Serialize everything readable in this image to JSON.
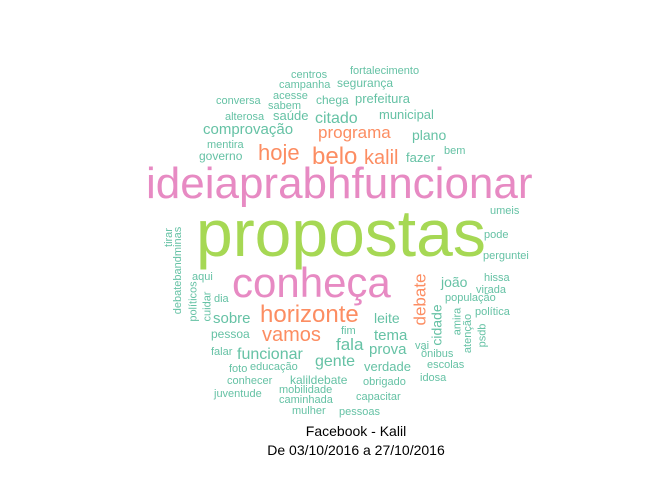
{
  "colors": {
    "pink": "#e78ac3",
    "green": "#a6d854",
    "orange": "#fc8d62",
    "teal": "#66c2a5"
  },
  "caption": {
    "line1": "Facebook - Kalil",
    "line2": "De 03/10/2016 a 27/10/2016"
  },
  "words": [
    {
      "text": "propostas",
      "color": "green"
    },
    {
      "text": "ideiaprabhfuncionar",
      "color": "pink"
    },
    {
      "text": "conheça",
      "color": "pink"
    },
    {
      "text": "horizonte",
      "color": "orange"
    },
    {
      "text": "belo",
      "color": "orange"
    },
    {
      "text": "kalil",
      "color": "orange"
    },
    {
      "text": "hoje",
      "color": "orange"
    },
    {
      "text": "vamos",
      "color": "orange"
    },
    {
      "text": "programa",
      "color": "orange"
    },
    {
      "text": "debate",
      "color": "orange"
    },
    {
      "text": "fortalecimento",
      "color": "teal"
    },
    {
      "text": "centros",
      "color": "teal"
    },
    {
      "text": "campanha",
      "color": "teal"
    },
    {
      "text": "segurança",
      "color": "teal"
    },
    {
      "text": "acesse",
      "color": "teal"
    },
    {
      "text": "conversa",
      "color": "teal"
    },
    {
      "text": "sabem",
      "color": "teal"
    },
    {
      "text": "chega",
      "color": "teal"
    },
    {
      "text": "prefeitura",
      "color": "teal"
    },
    {
      "text": "alterosa",
      "color": "teal"
    },
    {
      "text": "saúde",
      "color": "teal"
    },
    {
      "text": "citado",
      "color": "teal"
    },
    {
      "text": "municipal",
      "color": "teal"
    },
    {
      "text": "comprovação",
      "color": "teal"
    },
    {
      "text": "plano",
      "color": "teal"
    },
    {
      "text": "mentira",
      "color": "teal"
    },
    {
      "text": "governo",
      "color": "teal"
    },
    {
      "text": "bem",
      "color": "teal"
    },
    {
      "text": "fazer",
      "color": "teal"
    },
    {
      "text": "umeis",
      "color": "teal"
    },
    {
      "text": "tirar",
      "color": "teal"
    },
    {
      "text": "debatebandminas",
      "color": "teal"
    },
    {
      "text": "pode",
      "color": "teal"
    },
    {
      "text": "perguntei",
      "color": "teal"
    },
    {
      "text": "aqui",
      "color": "teal"
    },
    {
      "text": "joão",
      "color": "teal"
    },
    {
      "text": "hissa",
      "color": "teal"
    },
    {
      "text": "virada",
      "color": "teal"
    },
    {
      "text": "políticos",
      "color": "teal"
    },
    {
      "text": "cuidar",
      "color": "teal"
    },
    {
      "text": "dia",
      "color": "teal"
    },
    {
      "text": "sobre",
      "color": "teal"
    },
    {
      "text": "leite",
      "color": "teal"
    },
    {
      "text": "cidade",
      "color": "teal"
    },
    {
      "text": "população",
      "color": "teal"
    },
    {
      "text": "política",
      "color": "teal"
    },
    {
      "text": "amira",
      "color": "teal"
    },
    {
      "text": "atenção",
      "color": "teal"
    },
    {
      "text": "psdb",
      "color": "teal"
    },
    {
      "text": "pessoa",
      "color": "teal"
    },
    {
      "text": "fim",
      "color": "teal"
    },
    {
      "text": "tema",
      "color": "teal"
    },
    {
      "text": "fala",
      "color": "teal"
    },
    {
      "text": "vai",
      "color": "teal"
    },
    {
      "text": "prova",
      "color": "teal"
    },
    {
      "text": "falar",
      "color": "teal"
    },
    {
      "text": "funcionar",
      "color": "teal"
    },
    {
      "text": "gente",
      "color": "teal"
    },
    {
      "text": "ônibus",
      "color": "teal"
    },
    {
      "text": "escolas",
      "color": "teal"
    },
    {
      "text": "foto",
      "color": "teal"
    },
    {
      "text": "educação",
      "color": "teal"
    },
    {
      "text": "verdade",
      "color": "teal"
    },
    {
      "text": "conhecer",
      "color": "teal"
    },
    {
      "text": "kalildebate",
      "color": "teal"
    },
    {
      "text": "obrigado",
      "color": "teal"
    },
    {
      "text": "idosa",
      "color": "teal"
    },
    {
      "text": "mobilidade",
      "color": "teal"
    },
    {
      "text": "juventude",
      "color": "teal"
    },
    {
      "text": "caminhada",
      "color": "teal"
    },
    {
      "text": "capacitar",
      "color": "teal"
    },
    {
      "text": "mulher",
      "color": "teal"
    },
    {
      "text": "pessoas",
      "color": "teal"
    }
  ]
}
